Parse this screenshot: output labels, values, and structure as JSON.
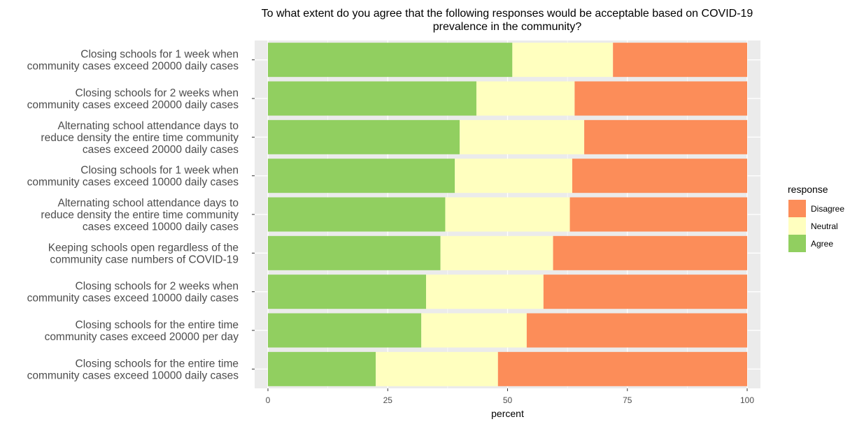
{
  "chart_data": {
    "type": "bar",
    "orientation": "horizontal",
    "stacked": true,
    "title_lines": [
      "To what extent do you agree that the following responses would be acceptable based on COVID-19",
      "prevalence in the community?"
    ],
    "xlabel": "percent",
    "ylabel": "",
    "xlim": [
      0,
      100
    ],
    "x_ticks": [
      0,
      25,
      50,
      75,
      100
    ],
    "grid": true,
    "legend": {
      "title": "response",
      "placement": "right",
      "entries": [
        "Disagree",
        "Neutral",
        "Agree"
      ]
    },
    "colors": {
      "Agree": "#91cf60",
      "Neutral": "#ffffbf",
      "Disagree": "#fc8d59",
      "panel_background": "#ebebeb",
      "gridline": "#ffffff"
    },
    "categories": [
      {
        "lines": [
          "Closing schools for 1 week when",
          "community cases exceed 20000 daily cases"
        ]
      },
      {
        "lines": [
          "Closing schools for 2 weeks when",
          "community cases exceed 20000 daily cases"
        ]
      },
      {
        "lines": [
          "Alternating school attendance days to",
          "reduce density the entire time community",
          "cases exceed 20000 daily cases"
        ]
      },
      {
        "lines": [
          "Closing schools for 1 week when",
          "community cases exceed 10000 daily cases"
        ]
      },
      {
        "lines": [
          "Alternating school attendance days to",
          "reduce density the entire time community",
          "cases exceed 10000 daily cases"
        ]
      },
      {
        "lines": [
          "Keeping schools open regardless of the",
          "community case numbers of COVID-19"
        ]
      },
      {
        "lines": [
          "Closing schools for 2 weeks when",
          "community cases exceed 10000 daily cases"
        ]
      },
      {
        "lines": [
          "Closing schools for the entire time",
          "community cases exceed 20000 per day"
        ]
      },
      {
        "lines": [
          "Closing schools for the entire time",
          "community cases exceed 10000 daily cases"
        ]
      }
    ],
    "series": [
      {
        "name": "Agree",
        "values": [
          51,
          43.5,
          40,
          39,
          37,
          36,
          33,
          32,
          22.5
        ]
      },
      {
        "name": "Neutral",
        "values": [
          21,
          20.5,
          26,
          24.5,
          26,
          23.5,
          24.5,
          22,
          25.5
        ]
      },
      {
        "name": "Disagree",
        "values": [
          28,
          36,
          34,
          36.5,
          37,
          40.5,
          42.5,
          46,
          52
        ]
      }
    ]
  }
}
